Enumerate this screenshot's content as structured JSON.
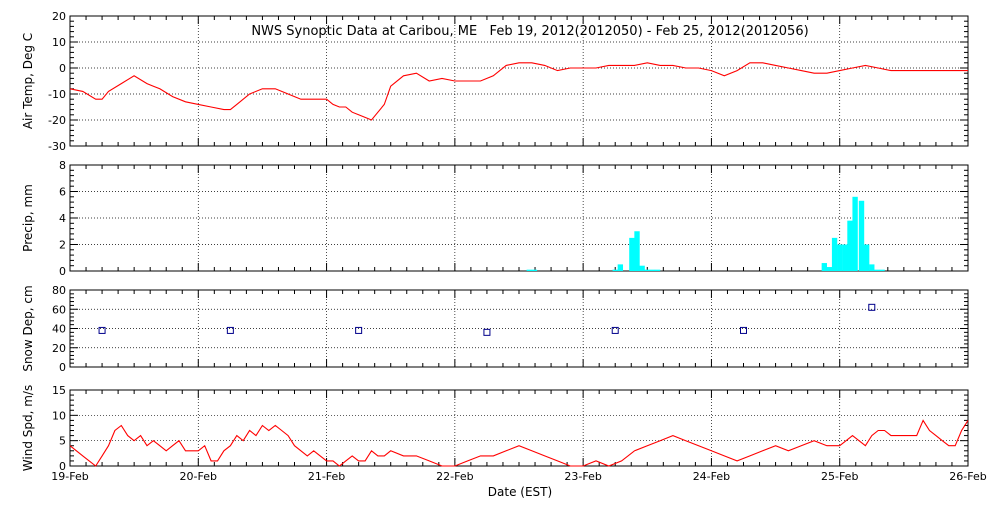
{
  "title": "NWS Synoptic Data at Caribou, ME   Feb 19, 2012(2012050) - Feb 25, 2012(2012056)",
  "xlabel": "Date (EST)",
  "x_ticks": [
    "19-Feb",
    "20-Feb",
    "21-Feb",
    "22-Feb",
    "23-Feb",
    "24-Feb",
    "25-Feb",
    "26-Feb"
  ],
  "chart_data": [
    {
      "type": "line",
      "ylabel": "Air Temp, Deg C",
      "ylim": [
        -30,
        20
      ],
      "yticks": [
        -30,
        -20,
        -10,
        0,
        10,
        20
      ],
      "x_unit": "days since 19-Feb 00:00",
      "grid": true,
      "series": [
        {
          "color": "#ff0000",
          "x": [
            0,
            0.1,
            0.2,
            0.25,
            0.3,
            0.4,
            0.5,
            0.6,
            0.65,
            0.7,
            0.8,
            0.9,
            1.0,
            1.1,
            1.2,
            1.25,
            1.3,
            1.4,
            1.5,
            1.6,
            1.7,
            1.75,
            1.8,
            1.9,
            2.0,
            2.05,
            2.1,
            2.15,
            2.2,
            2.25,
            2.3,
            2.35,
            2.4,
            2.45,
            2.5,
            2.6,
            2.7,
            2.8,
            2.9,
            3.0,
            3.1,
            3.2,
            3.3,
            3.4,
            3.5,
            3.6,
            3.7,
            3.8,
            3.9,
            4.0,
            4.1,
            4.2,
            4.3,
            4.4,
            4.5,
            4.6,
            4.7,
            4.8,
            4.9,
            5.0,
            5.1,
            5.2,
            5.3,
            5.4,
            5.5,
            5.6,
            5.7,
            5.8,
            5.9,
            6.0,
            6.1,
            6.2,
            6.3,
            6.4,
            6.5,
            6.6,
            6.7,
            6.8,
            6.9,
            7.0
          ],
          "y": [
            -8,
            -9,
            -12,
            -12,
            -9,
            -6,
            -3,
            -6,
            -7,
            -8,
            -11,
            -13,
            -14,
            -15,
            -16,
            -16,
            -14,
            -10,
            -8,
            -8,
            -10,
            -11,
            -12,
            -12,
            -12,
            -14,
            -15,
            -15,
            -17,
            -18,
            -19,
            -20,
            -17,
            -14,
            -7,
            -3,
            -2,
            -5,
            -4,
            -5,
            -5,
            -5,
            -3,
            1,
            2,
            2,
            1,
            -1,
            0,
            0,
            0,
            1,
            1,
            1,
            2,
            1,
            1,
            0,
            0,
            -1,
            -3,
            -1,
            2,
            2,
            1,
            0,
            -1,
            -2,
            -2,
            -1,
            0,
            1,
            0,
            -1,
            -1,
            -1,
            -1,
            -1,
            -1,
            -1
          ]
        }
      ]
    },
    {
      "type": "bar",
      "ylabel": "Precip, mm",
      "ylim": [
        0,
        8
      ],
      "yticks": [
        0,
        2,
        4,
        6,
        8
      ],
      "x_unit": "days since 19-Feb 00:00",
      "bar_width_days": 0.0417,
      "grid": true,
      "series": [
        {
          "color": "#00ffff",
          "x": [
            3.58,
            3.62,
            4.25,
            4.29,
            4.38,
            4.42,
            4.46,
            4.5,
            4.54,
            4.58,
            5.88,
            5.92,
            5.96,
            6.0,
            6.04,
            6.08,
            6.12,
            6.17,
            6.21,
            6.25,
            6.29,
            6.33
          ],
          "values": [
            0.1,
            0.1,
            0.1,
            0.5,
            2.5,
            3.0,
            0.4,
            0.1,
            0.1,
            0.1,
            0.6,
            0.3,
            2.5,
            2.0,
            2.0,
            3.8,
            5.6,
            5.3,
            2.0,
            0.5,
            0.1,
            0.1
          ]
        }
      ]
    },
    {
      "type": "scatter",
      "ylabel": "Snow Dep, cm",
      "ylim": [
        0,
        80
      ],
      "yticks": [
        0,
        20,
        40,
        60,
        80
      ],
      "x_unit": "days since 19-Feb 00:00",
      "grid": true,
      "series": [
        {
          "color": "#00008b",
          "marker": "square",
          "x": [
            0.25,
            1.25,
            2.25,
            3.25,
            4.25,
            5.25,
            6.25
          ],
          "y": [
            38,
            38,
            38,
            36,
            38,
            38,
            62
          ]
        }
      ]
    },
    {
      "type": "line",
      "ylabel": "Wind Spd, m/s",
      "ylim": [
        0,
        15
      ],
      "yticks": [
        0,
        5,
        10,
        15
      ],
      "x_unit": "days since 19-Feb 00:00",
      "grid": true,
      "series": [
        {
          "color": "#ff0000",
          "x": [
            0,
            0.05,
            0.1,
            0.15,
            0.2,
            0.25,
            0.3,
            0.35,
            0.4,
            0.45,
            0.5,
            0.55,
            0.6,
            0.65,
            0.7,
            0.75,
            0.8,
            0.85,
            0.9,
            0.95,
            1.0,
            1.05,
            1.1,
            1.15,
            1.2,
            1.25,
            1.3,
            1.35,
            1.4,
            1.45,
            1.5,
            1.55,
            1.6,
            1.65,
            1.7,
            1.75,
            1.8,
            1.85,
            1.9,
            1.95,
            2.0,
            2.05,
            2.1,
            2.15,
            2.2,
            2.25,
            2.3,
            2.35,
            2.4,
            2.45,
            2.5,
            2.6,
            2.7,
            2.8,
            2.9,
            3.0,
            3.1,
            3.2,
            3.3,
            3.4,
            3.5,
            3.6,
            3.7,
            3.8,
            3.9,
            4.0,
            4.1,
            4.2,
            4.3,
            4.4,
            4.5,
            4.6,
            4.7,
            4.8,
            4.9,
            5.0,
            5.1,
            5.2,
            5.3,
            5.4,
            5.5,
            5.6,
            5.7,
            5.8,
            5.9,
            6.0,
            6.05,
            6.1,
            6.15,
            6.2,
            6.25,
            6.3,
            6.35,
            6.4,
            6.45,
            6.5,
            6.55,
            6.6,
            6.65,
            6.7,
            6.75,
            6.8,
            6.85,
            6.9,
            6.95,
            7.0
          ],
          "y": [
            4,
            3,
            2,
            1,
            0,
            2,
            4,
            7,
            8,
            6,
            5,
            6,
            4,
            5,
            4,
            3,
            4,
            5,
            3,
            3,
            3,
            4,
            1,
            1,
            3,
            4,
            6,
            5,
            7,
            6,
            8,
            7,
            8,
            7,
            6,
            4,
            3,
            2,
            3,
            2,
            1,
            1,
            0,
            1,
            2,
            1,
            1,
            3,
            2,
            2,
            3,
            2,
            2,
            1,
            0,
            0,
            1,
            2,
            2,
            3,
            4,
            3,
            2,
            1,
            0,
            0,
            1,
            0,
            1,
            3,
            4,
            5,
            6,
            5,
            4,
            3,
            2,
            1,
            2,
            3,
            4,
            3,
            4,
            5,
            4,
            4,
            5,
            6,
            5,
            4,
            6,
            7,
            7,
            6,
            6,
            6,
            6,
            6,
            9,
            7,
            6,
            5,
            4,
            4,
            7,
            9
          ]
        }
      ]
    }
  ]
}
